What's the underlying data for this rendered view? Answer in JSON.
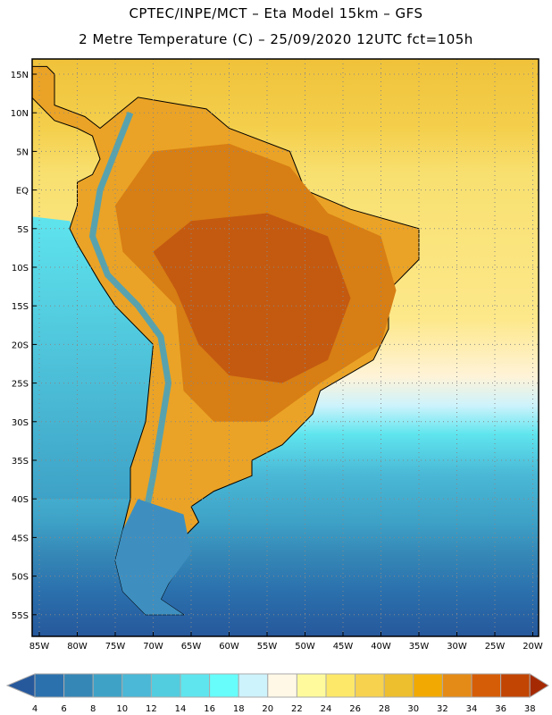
{
  "header": {
    "title_line1": "CPTEC/INPE/MCT –  Eta Model 15km – GFS",
    "title_line2": "2 Metre Temperature (C) – 25/09/2020 12UTC fct=105h"
  },
  "map": {
    "lat_labels": [
      "15N",
      "10N",
      "5N",
      "EQ",
      "5S",
      "10S",
      "15S",
      "20S",
      "25S",
      "30S",
      "35S",
      "40S",
      "45S",
      "50S",
      "55S"
    ],
    "lats": [
      15,
      10,
      5,
      0,
      -5,
      -10,
      -15,
      -20,
      -25,
      -30,
      -35,
      -40,
      -45,
      -50,
      -55
    ],
    "lon_labels": [
      "85W",
      "80W",
      "75W",
      "70W",
      "65W",
      "60W",
      "55W",
      "50W",
      "45W",
      "40W",
      "35W",
      "30W",
      "25W",
      "20W"
    ],
    "lons": [
      -85,
      -80,
      -75,
      -70,
      -65,
      -60,
      -55,
      -50,
      -45,
      -40,
      -35,
      -30,
      -25,
      -20
    ]
  },
  "colorbar": {
    "labels": [
      "4",
      "6",
      "8",
      "10",
      "12",
      "14",
      "16",
      "18",
      "20",
      "22",
      "24",
      "26",
      "28",
      "30",
      "32",
      "34",
      "36",
      "38"
    ],
    "colors": [
      "#2b71ae",
      "#3587b6",
      "#3ea2c7",
      "#4ab8d6",
      "#52cde0",
      "#5fe5ee",
      "#66fdfb",
      "#cdf3fc",
      "#fff8e6",
      "#fffb9c",
      "#fde86a",
      "#f6d24f",
      "#edbe2e",
      "#f2aa03",
      "#e48b17",
      "#d65d07",
      "#c24503"
    ],
    "low_color": "#26589c",
    "high_color": "#a52a03"
  }
}
